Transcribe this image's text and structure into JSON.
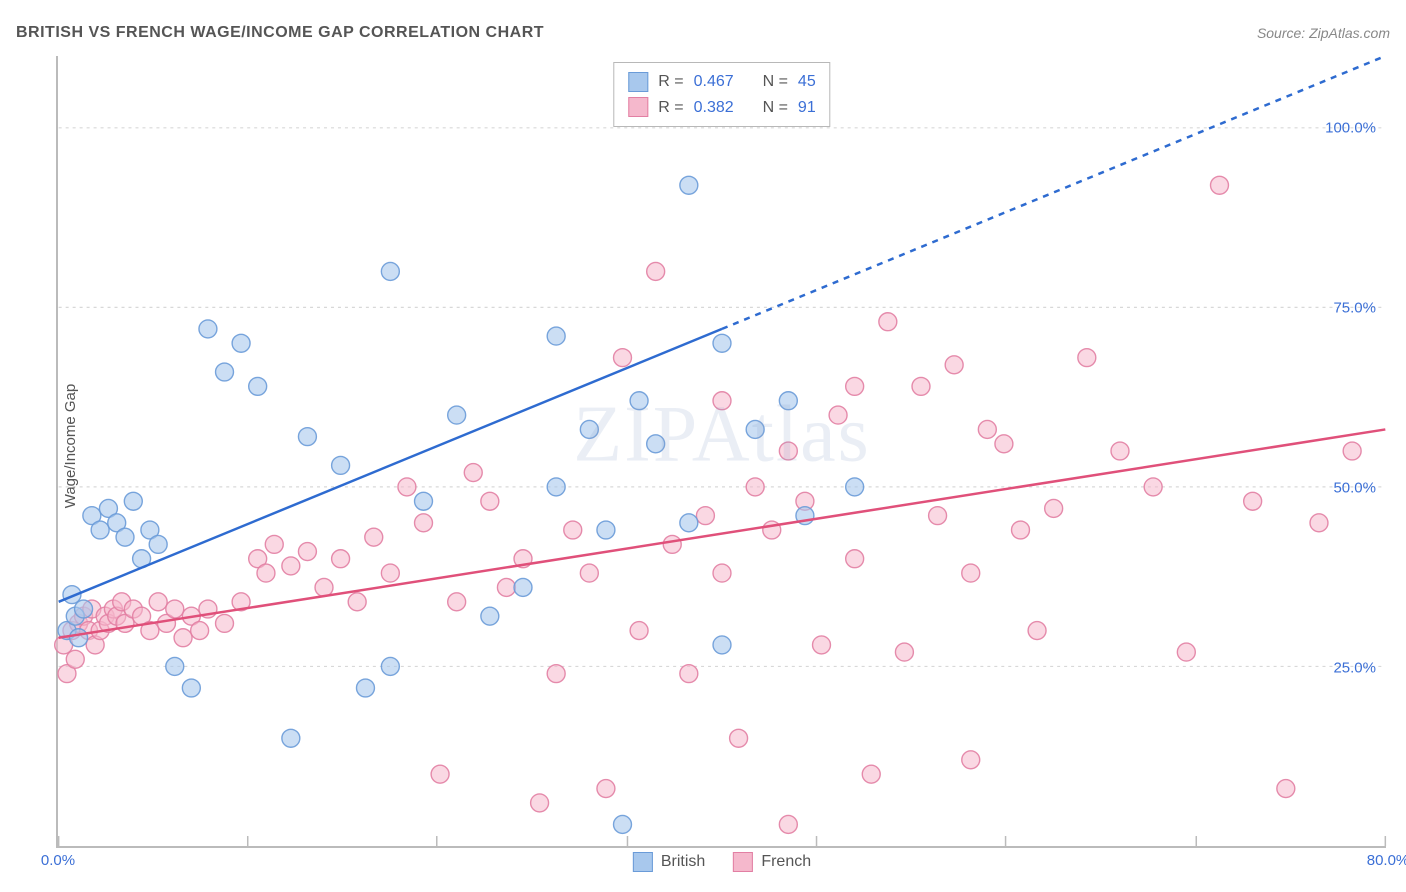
{
  "header": {
    "title": "BRITISH VS FRENCH WAGE/INCOME GAP CORRELATION CHART",
    "source": "Source: ZipAtlas.com"
  },
  "ylabel": "Wage/Income Gap",
  "watermark": "ZIPAtlas",
  "chart": {
    "type": "scatter",
    "xlim": [
      0,
      80
    ],
    "ylim": [
      0,
      110
    ],
    "xtick_positions": [
      0,
      11.4,
      22.8,
      34.3,
      45.7,
      57.1,
      68.6,
      80
    ],
    "xtick_labels": [
      "0.0%",
      "",
      "",
      "",
      "",
      "",
      "",
      "80.0%"
    ],
    "ytick_positions": [
      25,
      50,
      75,
      100
    ],
    "ytick_labels": [
      "25.0%",
      "50.0%",
      "75.0%",
      "100.0%"
    ],
    "ytick_dash_extra": 8,
    "grid_color": "#d8d8d8",
    "grid_dash": "3,4",
    "tick_mark_color": "#bbbbbb",
    "background_color": "#ffffff",
    "axis_label_color": "#3b6fd6",
    "tick_fontsize": 15,
    "title_fontsize": 16,
    "series": {
      "british": {
        "label": "British",
        "fill": "#a8c8ed",
        "fill_opacity": 0.6,
        "stroke": "#6a9bd8",
        "stroke_opacity": 0.9,
        "marker_radius": 9,
        "line_color": "#2e6bd0",
        "line_width": 2.5,
        "R": "0.467",
        "N": "45",
        "regression_solid": {
          "x1": 0,
          "y1": 34,
          "x2": 40,
          "y2": 72
        },
        "regression_dash": {
          "x1": 40,
          "y1": 72,
          "x2": 80,
          "y2": 110
        },
        "points": [
          [
            0.5,
            30
          ],
          [
            0.8,
            35
          ],
          [
            1.0,
            32
          ],
          [
            1.2,
            29
          ],
          [
            1.5,
            33
          ],
          [
            2.0,
            46
          ],
          [
            2.5,
            44
          ],
          [
            3.0,
            47
          ],
          [
            3.5,
            45
          ],
          [
            4.0,
            43
          ],
          [
            4.5,
            48
          ],
          [
            5.0,
            40
          ],
          [
            5.5,
            44
          ],
          [
            6.0,
            42
          ],
          [
            7.0,
            25
          ],
          [
            8.0,
            22
          ],
          [
            9.0,
            72
          ],
          [
            10.0,
            66
          ],
          [
            11.0,
            70
          ],
          [
            12.0,
            64
          ],
          [
            14.0,
            15
          ],
          [
            15.0,
            57
          ],
          [
            17.0,
            53
          ],
          [
            18.5,
            22
          ],
          [
            20.0,
            25
          ],
          [
            20.0,
            80
          ],
          [
            22.0,
            48
          ],
          [
            24.0,
            60
          ],
          [
            26.0,
            32
          ],
          [
            30.0,
            71
          ],
          [
            32.0,
            58
          ],
          [
            34.0,
            3
          ],
          [
            35.0,
            62
          ],
          [
            38.0,
            92
          ],
          [
            40.0,
            70
          ],
          [
            42.0,
            58
          ],
          [
            45.0,
            46
          ],
          [
            48.0,
            50
          ],
          [
            40.0,
            28
          ],
          [
            38.0,
            45
          ],
          [
            33.0,
            44
          ],
          [
            28.0,
            36
          ],
          [
            30.0,
            50
          ],
          [
            36.0,
            56
          ],
          [
            44.0,
            62
          ]
        ]
      },
      "french": {
        "label": "French",
        "fill": "#f5b8cc",
        "fill_opacity": 0.55,
        "stroke": "#e27fa3",
        "stroke_opacity": 0.9,
        "marker_radius": 9,
        "line_color": "#e0507a",
        "line_width": 2.5,
        "R": "0.382",
        "N": "91",
        "regression_solid": {
          "x1": 0,
          "y1": 29,
          "x2": 80,
          "y2": 58
        },
        "points": [
          [
            0.3,
            28
          ],
          [
            0.5,
            24
          ],
          [
            0.8,
            30
          ],
          [
            1.0,
            26
          ],
          [
            1.2,
            31
          ],
          [
            1.5,
            32
          ],
          [
            1.8,
            30
          ],
          [
            2.0,
            33
          ],
          [
            2.2,
            28
          ],
          [
            2.5,
            30
          ],
          [
            2.8,
            32
          ],
          [
            3.0,
            31
          ],
          [
            3.3,
            33
          ],
          [
            3.5,
            32
          ],
          [
            3.8,
            34
          ],
          [
            4.0,
            31
          ],
          [
            4.5,
            33
          ],
          [
            5.0,
            32
          ],
          [
            5.5,
            30
          ],
          [
            6.0,
            34
          ],
          [
            6.5,
            31
          ],
          [
            7.0,
            33
          ],
          [
            7.5,
            29
          ],
          [
            8.0,
            32
          ],
          [
            8.5,
            30
          ],
          [
            9.0,
            33
          ],
          [
            10.0,
            31
          ],
          [
            11.0,
            34
          ],
          [
            12.0,
            40
          ],
          [
            12.5,
            38
          ],
          [
            13.0,
            42
          ],
          [
            14.0,
            39
          ],
          [
            15.0,
            41
          ],
          [
            16.0,
            36
          ],
          [
            17.0,
            40
          ],
          [
            18.0,
            34
          ],
          [
            19.0,
            43
          ],
          [
            20.0,
            38
          ],
          [
            21.0,
            50
          ],
          [
            22.0,
            45
          ],
          [
            23.0,
            10
          ],
          [
            24.0,
            34
          ],
          [
            25.0,
            52
          ],
          [
            26.0,
            48
          ],
          [
            27.0,
            36
          ],
          [
            28.0,
            40
          ],
          [
            29.0,
            6
          ],
          [
            30.0,
            24
          ],
          [
            31.0,
            44
          ],
          [
            32.0,
            38
          ],
          [
            33.0,
            8
          ],
          [
            34.0,
            68
          ],
          [
            35.0,
            30
          ],
          [
            36.0,
            80
          ],
          [
            37.0,
            42
          ],
          [
            38.0,
            24
          ],
          [
            39.0,
            46
          ],
          [
            40.0,
            38
          ],
          [
            41.0,
            15
          ],
          [
            42.0,
            50
          ],
          [
            43.0,
            44
          ],
          [
            44.0,
            3
          ],
          [
            45.0,
            48
          ],
          [
            46.0,
            28
          ],
          [
            47.0,
            60
          ],
          [
            48.0,
            40
          ],
          [
            49.0,
            10
          ],
          [
            50.0,
            73
          ],
          [
            51.0,
            27
          ],
          [
            52.0,
            64
          ],
          [
            53.0,
            46
          ],
          [
            54.0,
            67
          ],
          [
            55.0,
            38
          ],
          [
            56.0,
            58
          ],
          [
            57.0,
            56
          ],
          [
            58.0,
            44
          ],
          [
            59.0,
            30
          ],
          [
            60.0,
            47
          ],
          [
            62.0,
            68
          ],
          [
            64.0,
            55
          ],
          [
            66.0,
            50
          ],
          [
            68.0,
            27
          ],
          [
            70.0,
            92
          ],
          [
            72.0,
            48
          ],
          [
            74.0,
            8
          ],
          [
            76.0,
            45
          ],
          [
            78.0,
            55
          ],
          [
            55.0,
            12
          ],
          [
            48.0,
            64
          ],
          [
            44.0,
            55
          ],
          [
            40.0,
            62
          ]
        ]
      }
    }
  },
  "legend": {
    "items": [
      {
        "key": "british",
        "label": "British",
        "swatch_fill": "#a8c8ed",
        "swatch_border": "#6a9bd8"
      },
      {
        "key": "french",
        "label": "French",
        "swatch_fill": "#f5b8cc",
        "swatch_border": "#e27fa3"
      }
    ]
  },
  "stats_box": {
    "rows": [
      {
        "swatch_fill": "#a8c8ed",
        "swatch_border": "#6a9bd8",
        "R_label": "R =",
        "R": "0.467",
        "N_label": "N =",
        "N": "45"
      },
      {
        "swatch_fill": "#f5b8cc",
        "swatch_border": "#e27fa3",
        "R_label": "R =",
        "R": "0.382",
        "N_label": "N =",
        "N": "91"
      }
    ]
  }
}
